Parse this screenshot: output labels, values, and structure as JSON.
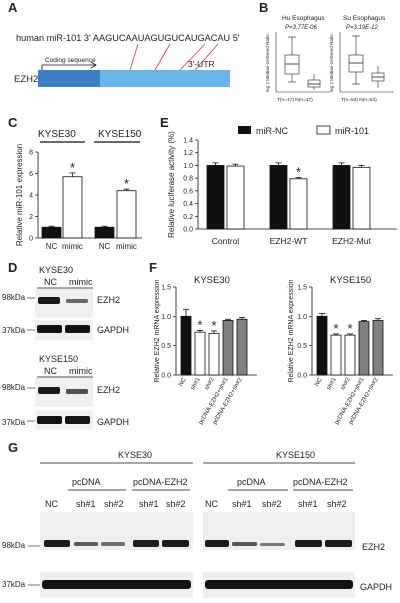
{
  "panels": {
    "A": "A",
    "B": "B",
    "C": "C",
    "D": "D",
    "E": "E",
    "F": "F",
    "G": "G"
  },
  "panel_a": {
    "mirna": "human miR-101 3' AAGUCAAUAGUGUCAUGACAU 5'",
    "gene": "EZH2",
    "coding": "Coding sequence",
    "utr": "3'-UTR"
  },
  "panel_b": {
    "ylabel": "log 2 Median-centered Ratio",
    "plots": [
      {
        "title": "Hu Esophagus",
        "pval": "P=3.77E-06",
        "xlabel": "T(n=17) N(n=17)"
      },
      {
        "title": "Su Esophagus",
        "pval": "P=3.19E-12",
        "xlabel": "T(n=53) N(n=53)"
      }
    ]
  },
  "blots": {
    "kda98": "98kDa",
    "kda37": "37kDa",
    "ezh2": "EZH2",
    "gapdh": "GAPDH",
    "nc": "NC",
    "mimic": "mimic",
    "kyse30": "KYSE30",
    "kyse150": "KYSE150",
    "pcdna": "pcDNA",
    "pcdna_ezh2": "pcDNA-EZH2",
    "sh1": "sh#1",
    "sh2": "sh#2"
  },
  "colors": {
    "black_bar": "#111111",
    "white_bar": "#ffffff",
    "grey_bar": "#808080",
    "blot_bg": "#efefef",
    "band": "#1a1a1a"
  },
  "chart_data": [
    {
      "id": "C",
      "type": "bar",
      "ylabel": "Relative miR-101 expression",
      "ylim": [
        0,
        8
      ],
      "yticks": [
        0,
        2,
        4,
        6,
        8
      ],
      "groups": [
        {
          "name": "KYSE30",
          "categories": [
            "NC",
            "mimic"
          ],
          "values": [
            1.0,
            5.7
          ],
          "errors": [
            0.1,
            0.35
          ],
          "colors": [
            "#111111",
            "#ffffff"
          ],
          "star": [
            false,
            true
          ]
        },
        {
          "name": "KYSE150",
          "categories": [
            "NC",
            "mimic"
          ],
          "values": [
            1.0,
            4.4
          ],
          "errors": [
            0.1,
            0.15
          ],
          "colors": [
            "#111111",
            "#ffffff"
          ],
          "star": [
            false,
            true
          ]
        }
      ]
    },
    {
      "id": "E",
      "type": "bar",
      "ylabel": "Relative luciferase activity (%)",
      "ylim": [
        0,
        1.4
      ],
      "yticks": [
        0.0,
        0.2,
        0.4,
        0.6,
        0.8,
        1.0,
        1.2,
        1.4
      ],
      "categories": [
        "Control",
        "EZH2-WT",
        "EZH2-Mut"
      ],
      "series": [
        {
          "name": "miR-NC",
          "color": "#111111",
          "values": [
            1.0,
            1.0,
            1.0
          ],
          "errors": [
            0.04,
            0.04,
            0.04
          ]
        },
        {
          "name": "miR-101",
          "color": "#ffffff",
          "values": [
            0.99,
            0.79,
            0.97
          ],
          "errors": [
            0.03,
            0.02,
            0.03
          ]
        }
      ],
      "stars": [
        [
          "EZH2-WT",
          "miR-101"
        ]
      ],
      "legend": "top"
    },
    {
      "id": "F1",
      "type": "bar",
      "title": "KYSE30",
      "ylabel": "Relative EZH2 mRNA expression",
      "ylim": [
        0,
        1.5
      ],
      "yticks": [
        0.0,
        0.5,
        1.0,
        1.5
      ],
      "categories": [
        "NC",
        "sh#1",
        "sh#2",
        "pcDNA-EZH2+sh#1",
        "pcDNA-EZH2+sh#2"
      ],
      "values": [
        1.0,
        0.73,
        0.71,
        0.93,
        0.95
      ],
      "errors": [
        0.12,
        0.03,
        0.04,
        0.02,
        0.03
      ],
      "colors": [
        "#111111",
        "#ffffff",
        "#ffffff",
        "#808080",
        "#808080"
      ],
      "star": [
        false,
        true,
        true,
        false,
        false
      ]
    },
    {
      "id": "F2",
      "type": "bar",
      "title": "KYSE150",
      "ylabel": "Relative EZH2 mRNA expression",
      "ylim": [
        0,
        1.5
      ],
      "yticks": [
        0.0,
        0.5,
        1.0,
        1.5
      ],
      "categories": [
        "NC",
        "sh#1",
        "sh#2",
        "pcDNA-EZH2+sh#1",
        "pcDNA-EZH2+sh#2"
      ],
      "values": [
        1.0,
        0.68,
        0.68,
        0.91,
        0.93
      ],
      "errors": [
        0.05,
        0.02,
        0.02,
        0.02,
        0.03
      ],
      "colors": [
        "#111111",
        "#ffffff",
        "#ffffff",
        "#808080",
        "#808080"
      ],
      "star": [
        false,
        true,
        true,
        false,
        false
      ]
    }
  ]
}
